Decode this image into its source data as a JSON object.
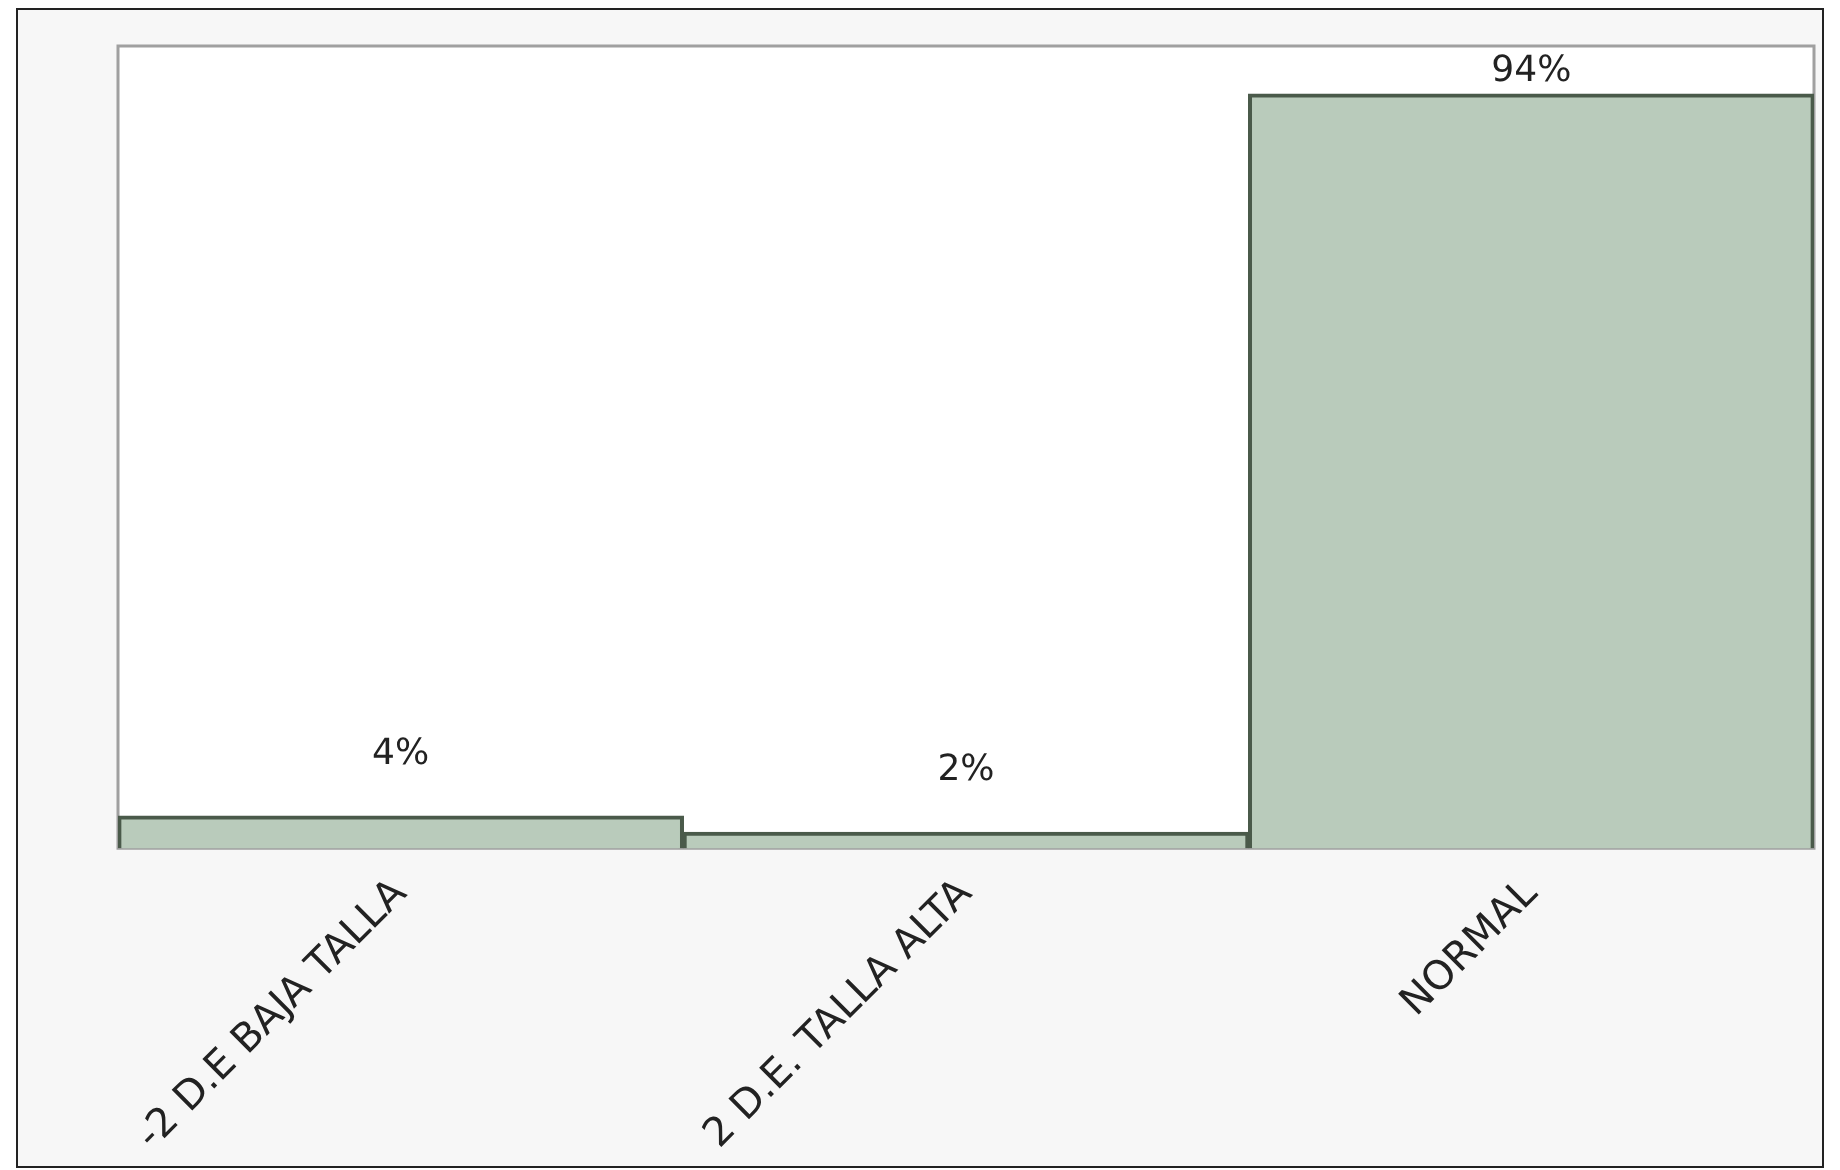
{
  "chart_data": {
    "type": "bar",
    "categories": [
      "-2 D.E BAJA TALLA",
      "2 D.E. TALLA ALTA",
      "NORMAL"
    ],
    "values": [
      4,
      2,
      94
    ],
    "color": "#b9cbbb",
    "data_labels": true,
    "value_labels": [
      "4%",
      "2%",
      "94%"
    ],
    "tick_labels": "x",
    "grid": false,
    "legend": false
  }
}
